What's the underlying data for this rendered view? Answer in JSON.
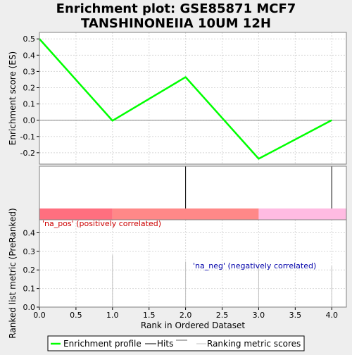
{
  "chart_data": {
    "type": "line",
    "title": "Enrichment plot: GSE85871 MCF7\nTANSHINONEIIA 10UM 12H",
    "title_lines": [
      "Enrichment plot: GSE85871 MCF7",
      "TANSHINONEIIA 10UM 12H"
    ],
    "xlabel": "Rank in Ordered Dataset",
    "xlim": [
      0,
      4.2
    ],
    "x_ticks": [
      "0.0",
      "0.5",
      "1.0",
      "1.5",
      "2.0",
      "2.5",
      "3.0",
      "3.5",
      "4.0"
    ],
    "x_tick_values": [
      0,
      0.5,
      1,
      1.5,
      2,
      2.5,
      3,
      3.5,
      4
    ],
    "es_panel": {
      "ylabel": "Enrichment score (ES)",
      "ylim": [
        -0.27,
        0.54
      ],
      "y_ticks": [
        "0.5",
        "0.4",
        "0.3",
        "0.2",
        "0.1",
        "0.0",
        "-0.1",
        "-0.2"
      ],
      "y_tick_values": [
        0.5,
        0.4,
        0.3,
        0.2,
        0.1,
        0.0,
        -0.1,
        -0.2
      ],
      "grid": true,
      "series": [
        {
          "name": "Enrichment profile",
          "color": "#00ff00",
          "x": [
            0,
            1,
            2,
            3,
            4
          ],
          "y": [
            0.5,
            -0.003,
            0.265,
            -0.237,
            0.0
          ]
        }
      ]
    },
    "hits": {
      "positions": [
        0,
        2,
        4
      ],
      "color": "#000000"
    },
    "color_bar": {
      "segments": [
        {
          "from": 0,
          "to": 1,
          "color": "#ff6f7f"
        },
        {
          "from": 1,
          "to": 3,
          "color": "#ff8888"
        },
        {
          "from": 3,
          "to": 4.2,
          "color": "#ffbbe2"
        }
      ]
    },
    "metric_panel": {
      "ylabel": "Ranked list metric (PreRanked)",
      "ylim": [
        0,
        0.47
      ],
      "y_ticks": [
        "0.4",
        "0.3",
        "0.2",
        "0.1",
        "0.0"
      ],
      "y_tick_values": [
        0.4,
        0.3,
        0.2,
        0.1,
        0.0
      ],
      "grid": true,
      "bars": {
        "x": [
          0,
          1,
          2,
          3,
          4
        ],
        "values": [
          0.45,
          0.28,
          0.245,
          0.23,
          0.22
        ],
        "color": "#c0c0c0"
      },
      "annotation_pos": {
        "text": "'na_pos' (positively correlated)",
        "color": "#cc0000"
      },
      "annotation_neg": {
        "text": "'na_neg' (negatively correlated)",
        "color": "#0000aa"
      }
    },
    "legend": {
      "placement": "bottom",
      "entries": [
        {
          "label": "Enrichment profile",
          "color": "#00ff00",
          "style": "thick-line"
        },
        {
          "label": "Hits",
          "color": "#000000",
          "style": "line"
        },
        {
          "label": "Ranking metric scores",
          "color": "#c0c0c0",
          "style": "line"
        }
      ]
    }
  }
}
